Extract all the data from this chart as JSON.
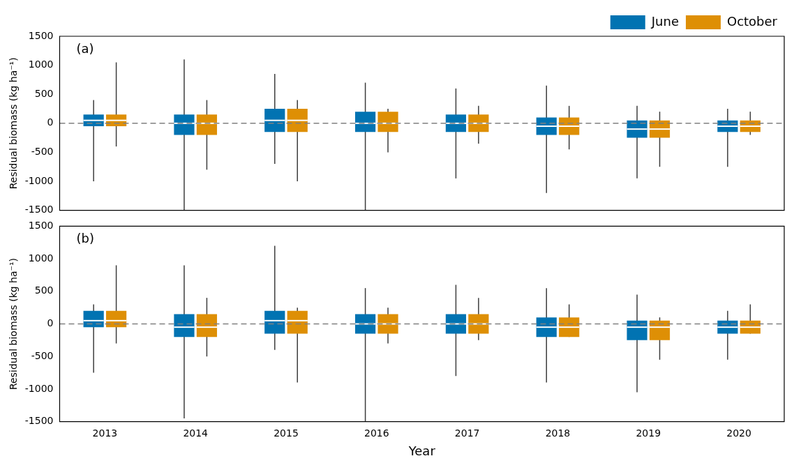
{
  "chart_data": [
    {
      "type": "box",
      "ylabel": "Residual biomass (kg ha⁻¹)",
      "categories": [
        "2013",
        "2014",
        "2015",
        "2016",
        "2017",
        "2018",
        "2019",
        "2020"
      ],
      "ylim": [
        -1500,
        1500
      ],
      "yticks": [
        -1500,
        -1000,
        -500,
        0,
        500,
        1000,
        1500
      ],
      "tick_labels": "y",
      "legend": "top right",
      "grid": false,
      "annotations": [
        "(a)"
      ],
      "ref_lines": [
        {
          "axis": "y",
          "value": 0,
          "color": "#808080",
          "line_style": "dashed"
        }
      ],
      "series": [
        {
          "name": "June",
          "color": "#0173b2",
          "boxes": [
            {
              "low": -1000,
              "q1": -50,
              "median": 50,
              "q3": 150,
              "high": 400
            },
            {
              "low": -1500,
              "q1": -200,
              "median": 0,
              "q3": 150,
              "high": 1100
            },
            {
              "low": -700,
              "q1": -150,
              "median": 50,
              "q3": 250,
              "high": 850
            },
            {
              "low": -1500,
              "q1": -150,
              "median": 0,
              "q3": 200,
              "high": 700
            },
            {
              "low": -950,
              "q1": -150,
              "median": 0,
              "q3": 150,
              "high": 600
            },
            {
              "low": -1200,
              "q1": -200,
              "median": -50,
              "q3": 100,
              "high": 650
            },
            {
              "low": -950,
              "q1": -250,
              "median": -100,
              "q3": 50,
              "high": 300
            },
            {
              "low": -750,
              "q1": -150,
              "median": -50,
              "q3": 50,
              "high": 250
            }
          ]
        },
        {
          "name": "October",
          "color": "#de8f05",
          "boxes": [
            {
              "low": -400,
              "q1": -50,
              "median": 50,
              "q3": 150,
              "high": 1050
            },
            {
              "low": -800,
              "q1": -200,
              "median": 0,
              "q3": 150,
              "high": 400
            },
            {
              "low": -1000,
              "q1": -150,
              "median": 50,
              "q3": 250,
              "high": 400
            },
            {
              "low": -500,
              "q1": -150,
              "median": 0,
              "q3": 200,
              "high": 250
            },
            {
              "low": -350,
              "q1": -150,
              "median": 0,
              "q3": 150,
              "high": 300
            },
            {
              "low": -450,
              "q1": -200,
              "median": -50,
              "q3": 100,
              "high": 300
            },
            {
              "low": -750,
              "q1": -250,
              "median": -100,
              "q3": 50,
              "high": 200
            },
            {
              "low": -200,
              "q1": -150,
              "median": -50,
              "q3": 50,
              "high": 200
            }
          ]
        }
      ]
    },
    {
      "type": "box",
      "ylabel": "Residual biomass (kg ha⁻¹)",
      "xlabel": "Year",
      "categories": [
        "2013",
        "2014",
        "2015",
        "2016",
        "2017",
        "2018",
        "2019",
        "2020"
      ],
      "ylim": [
        -1500,
        1500
      ],
      "yticks": [
        -1500,
        -1000,
        -500,
        0,
        500,
        1000,
        1500
      ],
      "grid": false,
      "annotations": [
        "(b)"
      ],
      "ref_lines": [
        {
          "axis": "y",
          "value": 0,
          "color": "#808080",
          "line_style": "dashed"
        }
      ],
      "series": [
        {
          "color": "#0173b2",
          "boxes": [
            {
              "low": -750,
              "q1": -50,
              "median": 50,
              "q3": 200,
              "high": 300
            },
            {
              "low": -1450,
              "q1": -200,
              "median": -50,
              "q3": 150,
              "high": 900
            },
            {
              "low": -400,
              "q1": -150,
              "median": 50,
              "q3": 200,
              "high": 1200
            },
            {
              "low": -1500,
              "q1": -150,
              "median": 0,
              "q3": 150,
              "high": 550
            },
            {
              "low": -800,
              "q1": -150,
              "median": 0,
              "q3": 150,
              "high": 600
            },
            {
              "low": -900,
              "q1": -200,
              "median": -50,
              "q3": 100,
              "high": 550
            },
            {
              "low": -1050,
              "q1": -250,
              "median": -50,
              "q3": 50,
              "high": 450
            },
            {
              "low": -550,
              "q1": -150,
              "median": -50,
              "q3": 50,
              "high": 200
            }
          ]
        },
        {
          "color": "#de8f05",
          "boxes": [
            {
              "low": -300,
              "q1": -50,
              "median": 50,
              "q3": 200,
              "high": 900
            },
            {
              "low": -500,
              "q1": -200,
              "median": -50,
              "q3": 150,
              "high": 400
            },
            {
              "low": -900,
              "q1": -150,
              "median": 50,
              "q3": 200,
              "high": 250
            },
            {
              "low": -300,
              "q1": -150,
              "median": 0,
              "q3": 150,
              "high": 250
            },
            {
              "low": -250,
              "q1": -150,
              "median": 0,
              "q3": 150,
              "high": 400
            },
            {
              "low": -200,
              "q1": -200,
              "median": -50,
              "q3": 100,
              "high": 300
            },
            {
              "low": -550,
              "q1": -250,
              "median": -50,
              "q3": 50,
              "high": 100
            },
            {
              "low": -150,
              "q1": -150,
              "median": -50,
              "q3": 50,
              "high": 300
            }
          ]
        }
      ]
    }
  ]
}
